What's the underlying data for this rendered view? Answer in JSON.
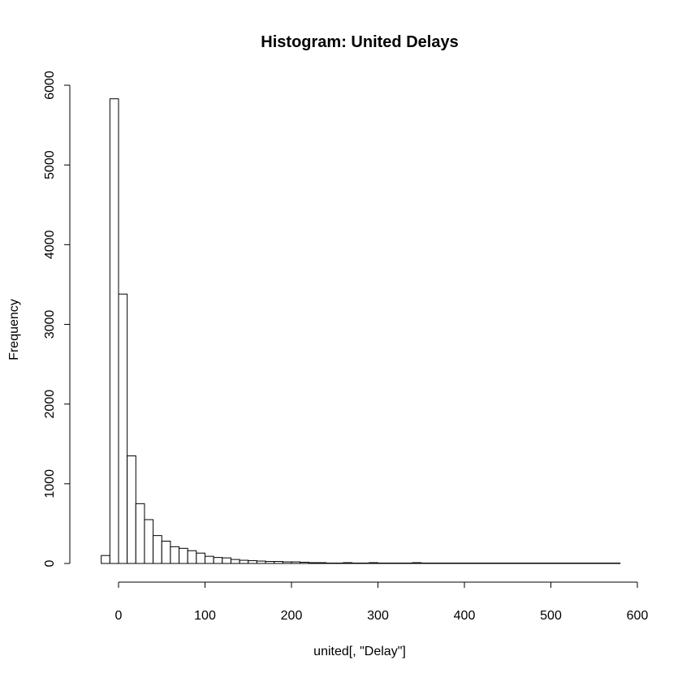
{
  "chart_data": {
    "type": "bar",
    "title": "Histogram: United Delays",
    "xlabel": "united[, \"Delay\"]",
    "ylabel": "Frequency",
    "xlim": [
      -30,
      600
    ],
    "ylim": [
      0,
      6000
    ],
    "x_ticks": [
      0,
      100,
      200,
      300,
      400,
      500,
      600
    ],
    "y_ticks": [
      0,
      1000,
      2000,
      3000,
      4000,
      5000,
      6000
    ],
    "bin_width": 10,
    "bin_start": -20,
    "values": [
      100,
      5830,
      3380,
      1350,
      750,
      550,
      350,
      280,
      210,
      190,
      160,
      130,
      90,
      75,
      70,
      50,
      40,
      35,
      30,
      25,
      25,
      20,
      20,
      15,
      10,
      10,
      5,
      5,
      10,
      5,
      5,
      10,
      5,
      5,
      5,
      5,
      10,
      5,
      5,
      5,
      5,
      5,
      5,
      5,
      5,
      5,
      5,
      5,
      5,
      5,
      5,
      5,
      5,
      5,
      5,
      5,
      5,
      5,
      5,
      5
    ]
  }
}
